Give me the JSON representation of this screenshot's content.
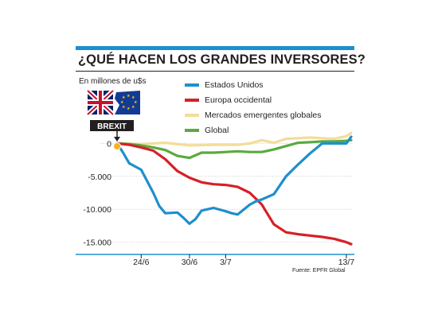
{
  "header": {
    "title": "¿QUÉ HACEN LOS GRANDES INVERSORES?",
    "unit_label": "En millones de u$s",
    "source": "Fuente: EPFR Global"
  },
  "brexit": {
    "label": "BREXIT",
    "uk_flag_icon": "uk-flag-icon",
    "eu_flag_icon": "eu-flag-icon",
    "arrow_icon": "down-arrow-icon"
  },
  "chart_data": {
    "type": "line",
    "title": "¿QUÉ HACEN LOS GRANDES INVERSORES?",
    "ylabel": "En millones de u$s",
    "xlabel": "",
    "ylim": [
      -16500,
      1500
    ],
    "yticks": [
      0,
      -5000,
      -10000,
      -15000
    ],
    "ytick_labels": [
      "0",
      "-5.000",
      "-10.000",
      "-15.000"
    ],
    "xticks": [
      2,
      6,
      9,
      19
    ],
    "xtick_labels": [
      "24/6",
      "30/6",
      "3/7",
      "13/7"
    ],
    "legend_position": "top-right",
    "grid": true,
    "series": [
      {
        "name": "Estados Unidos",
        "color": "#1e8fce",
        "x": [
          0,
          0.5,
          1,
          2,
          3,
          3.5,
          4,
          5,
          5.5,
          6,
          6.5,
          7,
          8,
          9,
          9.5,
          10,
          11,
          11.5,
          12,
          13,
          14,
          15,
          16,
          17,
          18,
          19,
          19.4
        ],
        "values": [
          0,
          -1400,
          -3000,
          -4000,
          -7500,
          -9500,
          -10600,
          -10500,
          -11300,
          -12200,
          -11500,
          -10200,
          -9800,
          -10300,
          -10600,
          -10800,
          -9300,
          -8800,
          -8500,
          -7700,
          -5000,
          -3200,
          -1500,
          0,
          0,
          0,
          1000
        ]
      },
      {
        "name": "Europa occidental",
        "color": "#d62027",
        "x": [
          0,
          1,
          2,
          3,
          4,
          5,
          6,
          7,
          8,
          9,
          10,
          11,
          12,
          13,
          14,
          15,
          16,
          17,
          18,
          19,
          19.4
        ],
        "values": [
          0,
          -200,
          -600,
          -1100,
          -2400,
          -4200,
          -5200,
          -5900,
          -6200,
          -6300,
          -6600,
          -7500,
          -9300,
          -12300,
          -13500,
          -13800,
          -14000,
          -14200,
          -14500,
          -15000,
          -15300
        ]
      },
      {
        "name": "Mercados emergentes globales",
        "color": "#f2dd9a",
        "x": [
          0,
          2,
          4,
          6,
          8,
          10,
          11,
          12,
          13,
          14,
          15,
          16,
          17,
          18,
          19,
          19.4
        ],
        "values": [
          0,
          -100,
          100,
          -300,
          -200,
          -200,
          0,
          500,
          100,
          700,
          800,
          900,
          800,
          700,
          1100,
          1600
        ]
      },
      {
        "name": "Global",
        "color": "#5aaa3f",
        "x": [
          0,
          1,
          2,
          3,
          4,
          5,
          6,
          7,
          8,
          9,
          10,
          11,
          12,
          13,
          14,
          15,
          16,
          17,
          18,
          19,
          19.4
        ],
        "values": [
          0,
          -100,
          -300,
          -600,
          -1000,
          -1900,
          -2200,
          -1400,
          -1400,
          -1300,
          -1200,
          -1300,
          -1300,
          -900,
          -400,
          100,
          200,
          300,
          300,
          400,
          500
        ]
      }
    ]
  }
}
